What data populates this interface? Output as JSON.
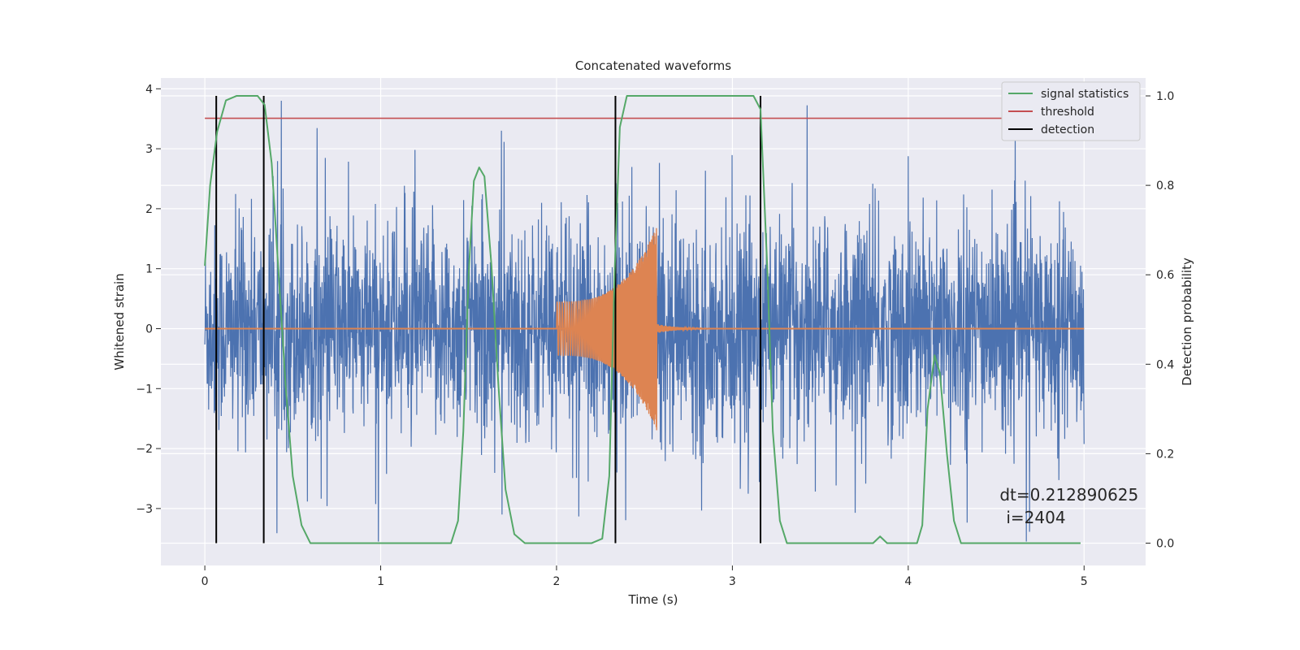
{
  "chart_data": {
    "type": "line",
    "title": "Concatenated waveforms",
    "xlabel": "Time (s)",
    "ylabel_left": "Whitened strain",
    "ylabel_right": "Detection probability",
    "xlim": [
      -0.25,
      5.35
    ],
    "ylim_left": [
      -3.95,
      4.18
    ],
    "ylim_right": [
      -0.05,
      1.04
    ],
    "x_ticks": [
      0,
      1,
      2,
      3,
      4,
      5
    ],
    "x_tick_labels": [
      "0",
      "1",
      "2",
      "3",
      "4",
      "5"
    ],
    "y_left_ticks": [
      -3,
      -2,
      -1,
      0,
      1,
      2,
      3,
      4
    ],
    "y_left_tick_labels": [
      "−3",
      "−2",
      "−1",
      "0",
      "1",
      "2",
      "3",
      "4"
    ],
    "y_right_ticks": [
      0.0,
      0.2,
      0.4,
      0.6,
      0.8,
      1.0
    ],
    "y_right_tick_labels": [
      "0.0",
      "0.2",
      "0.4",
      "0.6",
      "0.8",
      "1.0"
    ],
    "grid": true,
    "legend_position": "top-right",
    "legend": [
      {
        "label": "signal statistics",
        "color": "#55a868"
      },
      {
        "label": "threshold",
        "color": "#c44e52"
      },
      {
        "label": "detection",
        "color": "#000000"
      }
    ],
    "noise_series": {
      "color": "#4c72b0",
      "x_range": [
        0,
        5
      ],
      "typical_amplitude": 1.5,
      "max_value": 3.8,
      "min_value": -3.55
    },
    "waveform_series": {
      "color": "#dd8452",
      "segments": [
        {
          "x_start": 2.0,
          "x_end": 2.57,
          "amp_start": 0.45,
          "amp_end": 1.7
        }
      ],
      "baseline": 0
    },
    "signal_statistics": {
      "axis": "right",
      "points": [
        [
          0.0,
          0.62
        ],
        [
          0.03,
          0.8
        ],
        [
          0.07,
          0.92
        ],
        [
          0.12,
          0.99
        ],
        [
          0.18,
          1.0
        ],
        [
          0.3,
          1.0
        ],
        [
          0.34,
          0.98
        ],
        [
          0.38,
          0.85
        ],
        [
          0.42,
          0.6
        ],
        [
          0.46,
          0.35
        ],
        [
          0.5,
          0.15
        ],
        [
          0.55,
          0.04
        ],
        [
          0.6,
          0.0
        ],
        [
          1.0,
          0.0
        ],
        [
          1.4,
          0.0
        ],
        [
          1.44,
          0.05
        ],
        [
          1.47,
          0.25
        ],
        [
          1.5,
          0.6
        ],
        [
          1.53,
          0.81
        ],
        [
          1.56,
          0.84
        ],
        [
          1.59,
          0.82
        ],
        [
          1.63,
          0.62
        ],
        [
          1.67,
          0.35
        ],
        [
          1.71,
          0.12
        ],
        [
          1.76,
          0.02
        ],
        [
          1.82,
          0.0
        ],
        [
          2.2,
          0.0
        ],
        [
          2.26,
          0.01
        ],
        [
          2.3,
          0.15
        ],
        [
          2.33,
          0.6
        ],
        [
          2.36,
          0.93
        ],
        [
          2.4,
          1.0
        ],
        [
          3.12,
          1.0
        ],
        [
          3.16,
          0.97
        ],
        [
          3.2,
          0.6
        ],
        [
          3.23,
          0.25
        ],
        [
          3.27,
          0.05
        ],
        [
          3.31,
          0.0
        ],
        [
          3.8,
          0.0
        ],
        [
          3.84,
          0.015
        ],
        [
          3.88,
          0.0
        ],
        [
          4.05,
          0.0
        ],
        [
          4.08,
          0.04
        ],
        [
          4.11,
          0.3
        ],
        [
          4.15,
          0.42
        ],
        [
          4.18,
          0.38
        ],
        [
          4.22,
          0.2
        ],
        [
          4.26,
          0.05
        ],
        [
          4.3,
          0.0
        ],
        [
          4.98,
          0.0
        ]
      ]
    },
    "threshold": {
      "axis": "right",
      "value": 0.95,
      "x_range": [
        0,
        5
      ]
    },
    "detections": [
      0.065,
      0.335,
      2.335,
      3.16
    ],
    "detection_range_right": [
      0.0,
      1.0
    ],
    "annotation": {
      "text_line1": "dt=0.212890625",
      "text_line2": "i=2404",
      "x": 4.52,
      "y_left": -3.0
    }
  }
}
